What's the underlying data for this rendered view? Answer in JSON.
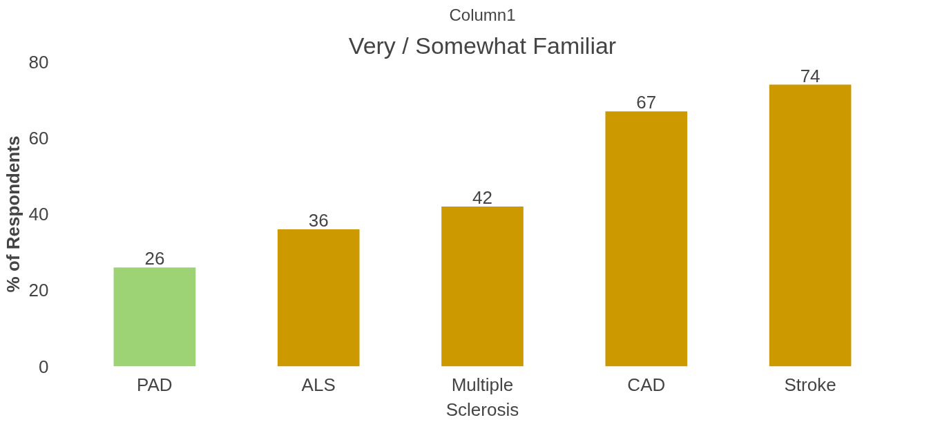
{
  "chart_data": {
    "type": "bar",
    "subtitle": "Column1",
    "title": "Very / Somewhat Familiar",
    "ylabel": "% of Respondents",
    "categories": [
      "PAD",
      "ALS",
      "Multiple Sclerosis",
      "CAD",
      "Stroke"
    ],
    "values": [
      26,
      36,
      42,
      67,
      74
    ],
    "colors": [
      "#9dd374",
      "#cc9900",
      "#cc9900",
      "#cc9900",
      "#cc9900"
    ],
    "ylim": [
      0,
      80
    ],
    "yticks": [
      0,
      20,
      40,
      60,
      80
    ],
    "data_labels": true,
    "grid": false
  }
}
